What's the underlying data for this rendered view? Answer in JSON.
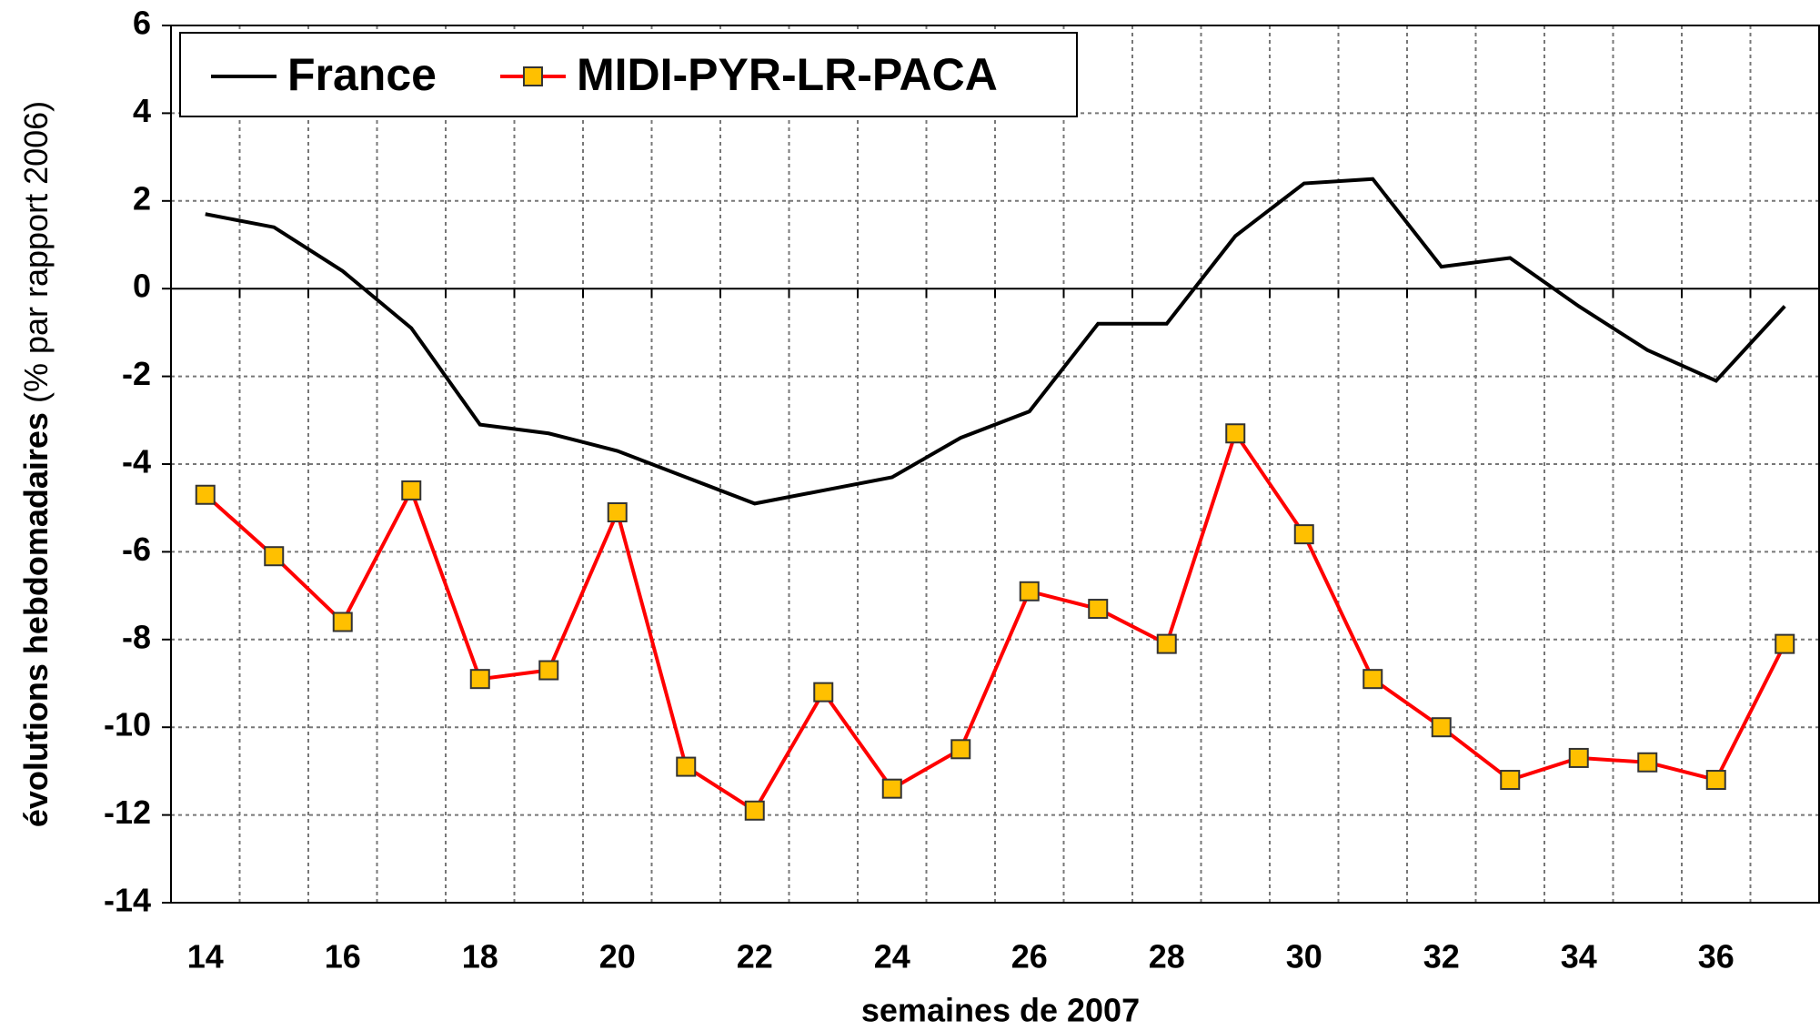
{
  "chart_data": {
    "type": "line",
    "x_label": "semaines de 2007",
    "y_label": "évolutions hebdomadaires",
    "y_label_note": "(% par rapport 2006)",
    "categories": [
      14,
      null,
      16,
      null,
      18,
      null,
      20,
      null,
      22,
      null,
      24,
      null,
      26,
      null,
      28,
      null,
      30,
      null,
      32,
      null,
      34,
      null,
      36,
      null
    ],
    "series": [
      {
        "name": "France",
        "color": "#000000",
        "marker": false,
        "values": [
          1.7,
          1.4,
          0.4,
          -0.9,
          -3.1,
          -3.3,
          -3.7,
          -4.3,
          -4.9,
          -4.6,
          -4.3,
          -3.4,
          -2.8,
          -0.8,
          -0.8,
          1.2,
          2.4,
          2.5,
          0.5,
          0.7,
          -0.4,
          -1.4,
          -2.1,
          -0.4
        ]
      },
      {
        "name": "MIDI-PYR-LR-PACA",
        "color": "#ff0000",
        "marker": true,
        "marker_color": "#ffc000",
        "values": [
          -4.7,
          -6.1,
          -7.6,
          -4.6,
          -8.9,
          -8.7,
          -5.1,
          -10.9,
          -11.9,
          -9.2,
          -11.4,
          -10.5,
          -6.9,
          -7.3,
          -8.1,
          -3.3,
          -5.6,
          -8.9,
          -10.0,
          -11.2,
          -10.7,
          -10.8,
          -11.2,
          -8.1
        ]
      }
    ],
    "ylim": [
      -14,
      6
    ],
    "yticks": [
      -14,
      -12,
      -10,
      -8,
      -6,
      -4,
      -2,
      0,
      2,
      4,
      6
    ],
    "grid": true,
    "legend": "top-left"
  }
}
